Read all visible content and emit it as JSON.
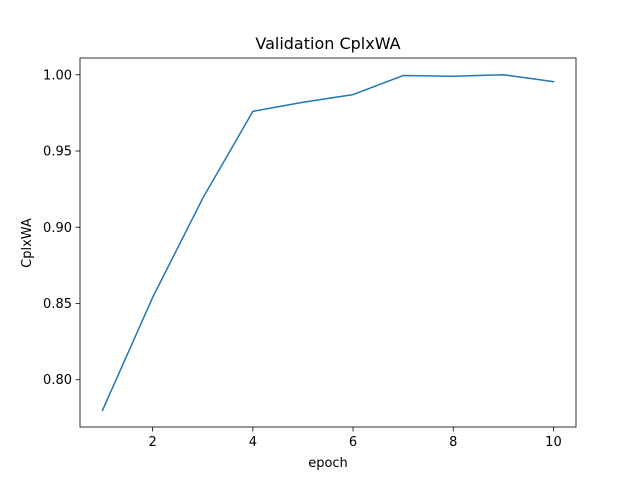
{
  "chart_data": {
    "type": "line",
    "title": "Validation CplxWA",
    "xlabel": "epoch",
    "ylabel": "CplxWA",
    "x": [
      1,
      2,
      3,
      4,
      5,
      6,
      7,
      8,
      9,
      10
    ],
    "series": [
      {
        "values": [
          0.78,
          0.854,
          0.919,
          0.976,
          0.982,
          0.987,
          0.9995,
          0.999,
          1.0,
          0.9955
        ],
        "color": "#1f77b4"
      }
    ],
    "xlim": [
      0.55,
      10.45
    ],
    "ylim": [
      0.769,
      1.011
    ],
    "xticks": [
      2,
      4,
      6,
      8,
      10
    ],
    "xtick_labels": [
      "2",
      "4",
      "6",
      "8",
      "10"
    ],
    "yticks": [
      0.8,
      0.85,
      0.9,
      0.95,
      1.0
    ],
    "ytick_labels": [
      "0.80",
      "0.85",
      "0.90",
      "0.95",
      "1.00"
    ],
    "grid": false,
    "legend": false
  }
}
